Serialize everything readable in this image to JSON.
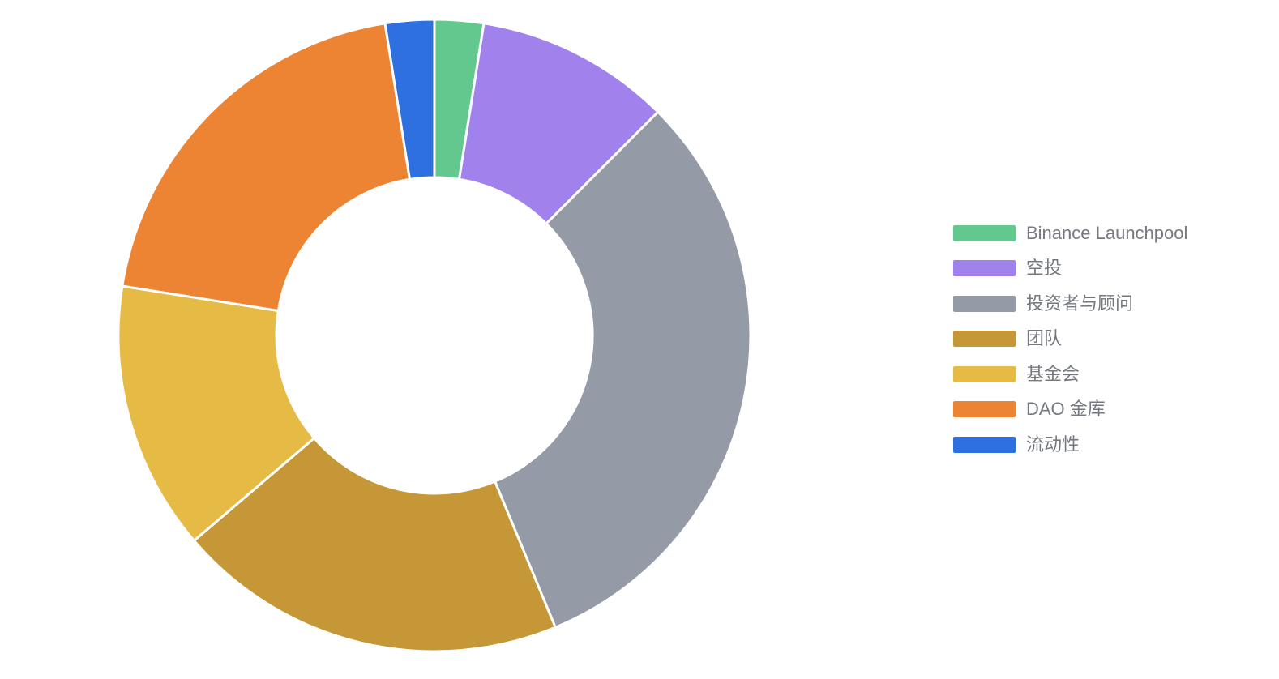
{
  "background_color": "#ffffff",
  "chart_data": {
    "type": "pie",
    "variant": "donut",
    "title": "",
    "legend_position": "right",
    "start_angle_deg": 0,
    "clockwise": true,
    "inner_radius_ratio": 0.5,
    "slice_border_color": "#ffffff",
    "slice_border_width": 3,
    "slices": [
      {
        "label": "Binance Launchpool",
        "value": 2.5,
        "color": "#62c88e"
      },
      {
        "label": "空投",
        "value": 10,
        "color": "#a181ec"
      },
      {
        "label": "投资者与顾问",
        "value": 31.25,
        "color": "#949ba6"
      },
      {
        "label": "团队",
        "value": 20,
        "color": "#c69737"
      },
      {
        "label": "基金会",
        "value": 13.75,
        "color": "#e5ba45"
      },
      {
        "label": "DAO 金库",
        "value": 20,
        "color": "#ed8433"
      },
      {
        "label": "流动性",
        "value": 2.5,
        "color": "#2f70e0"
      }
    ]
  },
  "legend": {
    "text_color": "#75797f"
  }
}
